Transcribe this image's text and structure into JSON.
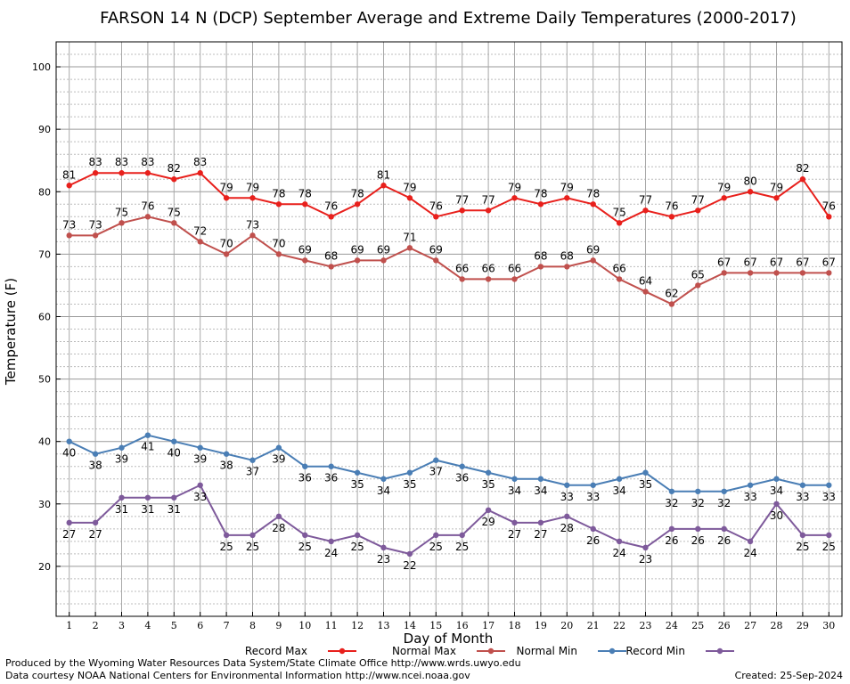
{
  "footer": {
    "left_line1": "Produced by the Wyoming Water Resources Data System/State Climate Office http://www.wrds.uwyo.edu",
    "left_line2": "Data courtesy NOAA National Centers for Environmental Information http://www.ncei.noaa.gov",
    "right": "Created:  25-Sep-2024"
  },
  "chart_data": {
    "type": "line",
    "title": "FARSON 14 N (DCP) September Average and Extreme Daily Temperatures (2000-2017)",
    "xlabel": "Day of Month",
    "ylabel": "Temperature (F)",
    "xlim": [
      0.5,
      30.5
    ],
    "ylim": [
      12,
      104
    ],
    "y_ticks": [
      20,
      30,
      40,
      50,
      60,
      70,
      80,
      90,
      100
    ],
    "x": [
      1,
      2,
      3,
      4,
      5,
      6,
      7,
      8,
      9,
      10,
      11,
      12,
      13,
      14,
      15,
      16,
      17,
      18,
      19,
      20,
      21,
      22,
      23,
      24,
      25,
      26,
      27,
      28,
      29,
      30
    ],
    "grid": true,
    "legend_position": "bottom",
    "series": [
      {
        "name": "Record Max",
        "color": "#e8201c",
        "label_position": "above",
        "values": [
          81,
          83,
          83,
          83,
          82,
          83,
          79,
          79,
          78,
          78,
          76,
          78,
          81,
          79,
          76,
          77,
          77,
          79,
          78,
          79,
          78,
          75,
          77,
          76,
          77,
          79,
          80,
          79,
          82,
          76
        ]
      },
      {
        "name": "Normal Max",
        "color": "#c0504d",
        "label_position": "above",
        "values": [
          73,
          73,
          75,
          76,
          75,
          72,
          70,
          73,
          70,
          69,
          68,
          69,
          69,
          71,
          69,
          66,
          66,
          66,
          68,
          68,
          69,
          66,
          64,
          62,
          65,
          67,
          67,
          67,
          67,
          67
        ]
      },
      {
        "name": "Normal Min",
        "color": "#4a7eb5",
        "label_position": "below",
        "values": [
          40,
          38,
          39,
          41,
          40,
          39,
          38,
          37,
          39,
          36,
          36,
          35,
          34,
          35,
          37,
          36,
          35,
          34,
          34,
          33,
          33,
          34,
          35,
          32,
          32,
          32,
          33,
          34,
          33,
          33
        ]
      },
      {
        "name": "Record Min",
        "color": "#7e5a9b",
        "label_position": "below",
        "values": [
          27,
          27,
          31,
          31,
          31,
          33,
          25,
          25,
          28,
          25,
          24,
          25,
          23,
          22,
          25,
          25,
          29,
          27,
          27,
          28,
          26,
          24,
          23,
          26,
          26,
          26,
          24,
          30,
          25,
          25
        ]
      }
    ]
  }
}
